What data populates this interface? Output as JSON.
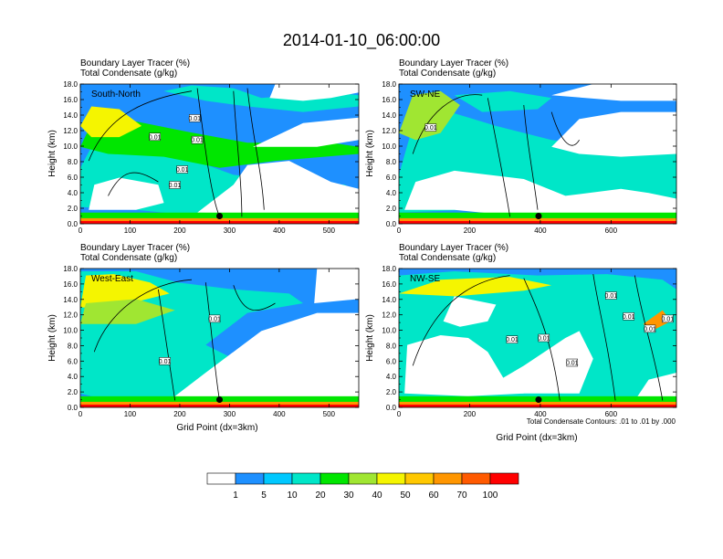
{
  "title": "2014-01-10_06:00:00",
  "panels_header": {
    "line1": "Boundary Layer Tracer    (%)",
    "line2": "Total Condensate   (g/kg)"
  },
  "y_axis_label": "Height (km)",
  "x_axis_label": "Grid Point (dx=3km)",
  "contour_note": "Total Condensate Contours: .01 to .01 by .000",
  "contour_label": "0.01",
  "colors": {
    "levels": [
      "#ffffff",
      "#1e90ff",
      "#00c8ff",
      "#00e6c8",
      "#00e600",
      "#a0e632",
      "#f5f500",
      "#ffc800",
      "#ff9600",
      "#ff5a00",
      "#ff0000"
    ],
    "contour": "#000000",
    "marker": "#000000"
  },
  "chart_data": [
    {
      "type": "heatmap",
      "name": "South-North",
      "label": "South-North",
      "ylim": [
        0,
        18
      ],
      "xlim": [
        0,
        560
      ],
      "y_ticks": [
        "0.0",
        "2.0",
        "4.0",
        "6.0",
        "8.0",
        "10.0",
        "12.0",
        "14.0",
        "16.0",
        "18.0"
      ],
      "x_ticks": [
        {
          "value": 0,
          "label": "0"
        },
        {
          "value": 100,
          "label": "100"
        },
        {
          "value": 200,
          "label": "200"
        },
        {
          "value": 300,
          "label": "300"
        },
        {
          "value": 400,
          "label": "400"
        },
        {
          "value": 500,
          "label": "500"
        }
      ],
      "marker": {
        "x": 280,
        "y": 1.0
      },
      "contour_label_points": [
        [
          230,
          13.6
        ],
        [
          150,
          11.2
        ],
        [
          235,
          10.8
        ],
        [
          190,
          5.0
        ],
        [
          205,
          7.0
        ]
      ]
    },
    {
      "type": "heatmap",
      "name": "SW-NE",
      "label": "SW-NE",
      "ylim": [
        0,
        18
      ],
      "xlim": [
        0,
        785
      ],
      "y_ticks": [
        "0.0",
        "2.0",
        "4.0",
        "6.0",
        "8.0",
        "10.0",
        "12.0",
        "14.0",
        "16.0",
        "18.0"
      ],
      "x_ticks": [
        {
          "value": 0,
          "label": "0"
        },
        {
          "value": 200,
          "label": "200"
        },
        {
          "value": 400,
          "label": "400"
        },
        {
          "value": 600,
          "label": "600"
        }
      ],
      "marker": {
        "x": 395,
        "y": 1.0
      },
      "contour_label_points": [
        [
          90,
          12.4
        ]
      ]
    },
    {
      "type": "heatmap",
      "name": "West-East",
      "label": "West-East",
      "ylim": [
        0,
        18
      ],
      "xlim": [
        0,
        560
      ],
      "y_ticks": [
        "0.0",
        "2.0",
        "4.0",
        "6.0",
        "8.0",
        "10.0",
        "12.0",
        "14.0",
        "16.0",
        "18.0"
      ],
      "x_ticks": [
        {
          "value": 0,
          "label": "0"
        },
        {
          "value": 100,
          "label": "100"
        },
        {
          "value": 200,
          "label": "200"
        },
        {
          "value": 300,
          "label": "300"
        },
        {
          "value": 400,
          "label": "400"
        },
        {
          "value": 500,
          "label": "500"
        }
      ],
      "marker": {
        "x": 280,
        "y": 1.0
      },
      "contour_label_points": [
        [
          270,
          11.5
        ],
        [
          170,
          6.0
        ]
      ]
    },
    {
      "type": "heatmap",
      "name": "NW-SE",
      "label": "NW-SE",
      "ylim": [
        0,
        18
      ],
      "xlim": [
        0,
        785
      ],
      "y_ticks": [
        "0.0",
        "2.0",
        "4.0",
        "6.0",
        "8.0",
        "10.0",
        "12.0",
        "14.0",
        "16.0",
        "18.0"
      ],
      "x_ticks": [
        {
          "value": 0,
          "label": "0"
        },
        {
          "value": 200,
          "label": "200"
        },
        {
          "value": 400,
          "label": "400"
        },
        {
          "value": 600,
          "label": "600"
        }
      ],
      "marker": {
        "x": 395,
        "y": 1.0
      },
      "contour_label_points": [
        [
          600,
          14.5
        ],
        [
          650,
          11.8
        ],
        [
          710,
          10.2
        ],
        [
          320,
          8.8
        ],
        [
          410,
          9.0
        ],
        [
          490,
          5.8
        ],
        [
          760,
          11.5
        ]
      ]
    }
  ],
  "colorbar": {
    "labels": [
      "1",
      "5",
      "10",
      "20",
      "30",
      "40",
      "50",
      "60",
      "70",
      "100"
    ]
  }
}
